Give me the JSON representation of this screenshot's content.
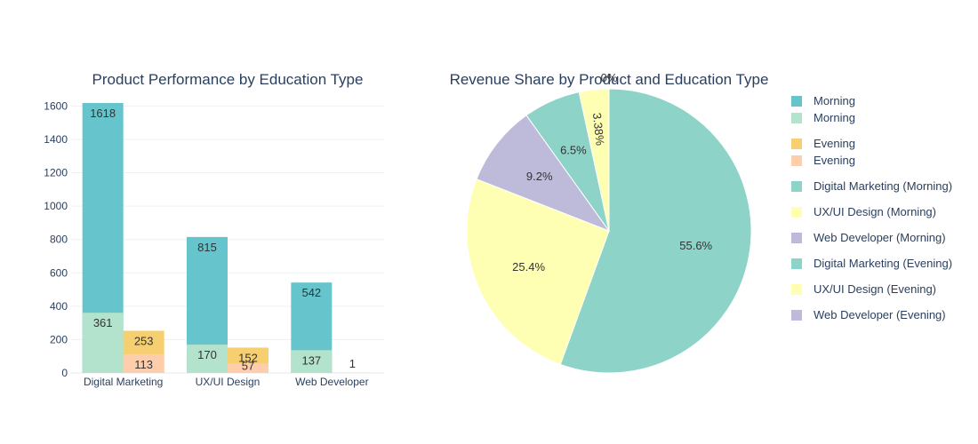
{
  "chart_data": [
    {
      "type": "bar",
      "title": "Product Performance by Education Type",
      "barmode": "stacked-overlay",
      "categories": [
        "Digital Marketing",
        "UX/UI Design",
        "Web Developer"
      ],
      "ylim": [
        0,
        1650
      ],
      "yticks": [
        "0",
        "200",
        "400",
        "600",
        "800",
        "1000",
        "1200",
        "1400",
        "1600"
      ],
      "grid": true,
      "series": [
        {
          "name": "Morning",
          "group": "Morning",
          "layer": "total",
          "color": "#66c5cc",
          "values": [
            1618,
            815,
            542
          ],
          "labels": [
            "1618",
            "815",
            "542"
          ]
        },
        {
          "name": "Morning",
          "group": "Morning",
          "layer": "part",
          "color": "#b3e2cd",
          "values": [
            361,
            170,
            137
          ],
          "labels": [
            "361",
            "170",
            "137"
          ]
        },
        {
          "name": "Evening",
          "group": "Evening",
          "layer": "total",
          "color": "#f6cf71",
          "values": [
            253,
            152,
            1
          ],
          "labels": [
            "253",
            "152",
            "1"
          ]
        },
        {
          "name": "Evening",
          "group": "Evening",
          "layer": "part",
          "color": "#fdcdac",
          "values": [
            113,
            57,
            0
          ],
          "labels": [
            "113",
            "57",
            ""
          ]
        }
      ]
    },
    {
      "type": "pie",
      "title": "Revenue Share by Product and Education Type",
      "slices": [
        {
          "label": "Digital Marketing (Morning)",
          "percent": 55.6,
          "text": "55.6%",
          "color": "#8dd3c7"
        },
        {
          "label": "UX/UI Design (Morning)",
          "percent": 25.4,
          "text": "25.4%",
          "color": "#ffffb3"
        },
        {
          "label": "Web Developer (Morning)",
          "percent": 9.2,
          "text": "9.2%",
          "color": "#bebada"
        },
        {
          "label": "Digital Marketing (Evening)",
          "percent": 6.5,
          "text": "6.5%",
          "color": "#8dd3c7"
        },
        {
          "label": "UX/UI Design (Evening)",
          "percent": 3.38,
          "text": "3.38%",
          "color": "#ffffb3"
        },
        {
          "label": "Web Developer (Evening)",
          "percent": 0.0,
          "text": "0%",
          "color": "#bebada"
        }
      ]
    }
  ],
  "legend": {
    "placement": "right",
    "items": [
      {
        "label": "Morning",
        "color": "#66c5cc"
      },
      {
        "label": "Morning",
        "color": "#b3e2cd"
      },
      {
        "label": "Evening",
        "color": "#f6cf71"
      },
      {
        "label": "Evening",
        "color": "#fdcdac"
      },
      {
        "label": "Digital Marketing (Morning)",
        "color": "#8dd3c7"
      },
      {
        "label": "UX/UI Design (Morning)",
        "color": "#ffffb3"
      },
      {
        "label": "Web Developer (Morning)",
        "color": "#bebada"
      },
      {
        "label": "Digital Marketing (Evening)",
        "color": "#8dd3c7"
      },
      {
        "label": "UX/UI Design (Evening)",
        "color": "#ffffb3"
      },
      {
        "label": "Web Developer (Evening)",
        "color": "#bebada"
      }
    ]
  }
}
